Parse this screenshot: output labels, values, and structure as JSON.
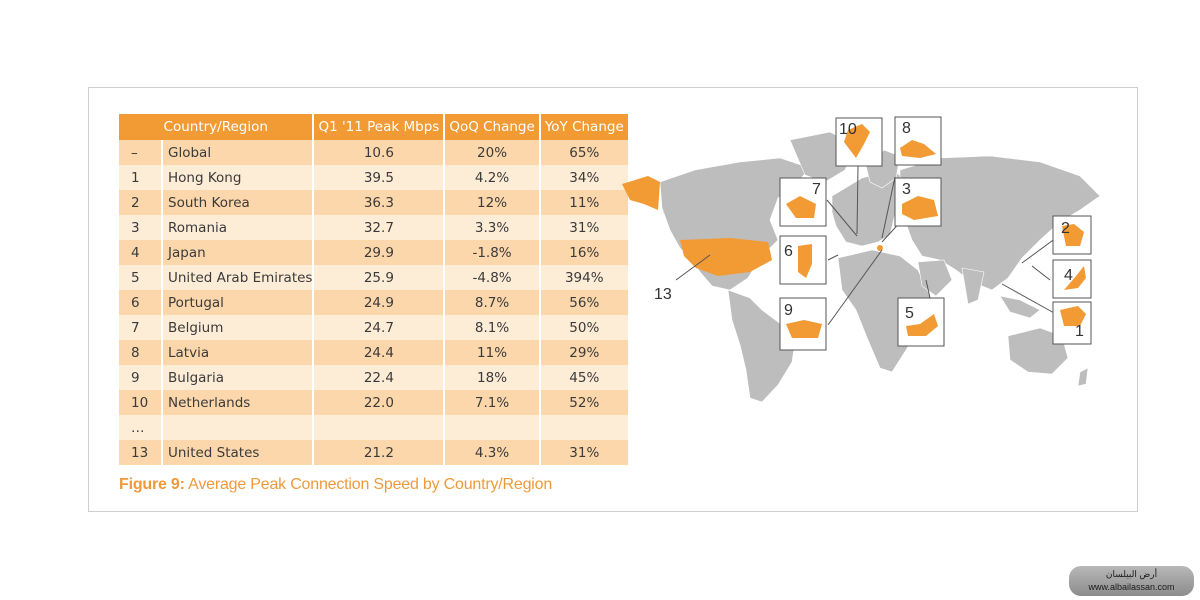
{
  "table": {
    "headers": [
      "Country/Region",
      "Q1 '11 Peak Mbps",
      "QoQ Change",
      "YoY Change"
    ],
    "rows": [
      {
        "rank": "–",
        "name": "Global",
        "peak": "10.6",
        "qoq": "20%",
        "yoy": "65%"
      },
      {
        "rank": "1",
        "name": "Hong Kong",
        "peak": "39.5",
        "qoq": "4.2%",
        "yoy": "34%"
      },
      {
        "rank": "2",
        "name": "South Korea",
        "peak": "36.3",
        "qoq": "12%",
        "yoy": "11%"
      },
      {
        "rank": "3",
        "name": "Romania",
        "peak": "32.7",
        "qoq": "3.3%",
        "yoy": "31%"
      },
      {
        "rank": "4",
        "name": "Japan",
        "peak": "29.9",
        "qoq": "-1.8%",
        "yoy": "16%"
      },
      {
        "rank": "5",
        "name": "United Arab Emirates",
        "peak": "25.9",
        "qoq": "-4.8%",
        "yoy": "394%"
      },
      {
        "rank": "6",
        "name": "Portugal",
        "peak": "24.9",
        "qoq": "8.7%",
        "yoy": "56%"
      },
      {
        "rank": "7",
        "name": "Belgium",
        "peak": "24.7",
        "qoq": "8.1%",
        "yoy": "50%"
      },
      {
        "rank": "8",
        "name": "Latvia",
        "peak": "24.4",
        "qoq": "11%",
        "yoy": "29%"
      },
      {
        "rank": "9",
        "name": "Bulgaria",
        "peak": "22.4",
        "qoq": "18%",
        "yoy": "45%"
      },
      {
        "rank": "10",
        "name": "Netherlands",
        "peak": "22.0",
        "qoq": "7.1%",
        "yoy": "52%"
      },
      {
        "rank": "…",
        "name": "",
        "peak": "",
        "qoq": "",
        "yoy": ""
      },
      {
        "rank": "13",
        "name": "United States",
        "peak": "21.2",
        "qoq": "4.3%",
        "yoy": "31%"
      }
    ]
  },
  "caption": {
    "label": "Figure 9:",
    "text": "Average Peak Connection Speed by Country/Region"
  },
  "map": {
    "callouts": [
      "10",
      "8",
      "7",
      "3",
      "2",
      "6",
      "4",
      "13",
      "9",
      "5",
      "1"
    ]
  },
  "watermark": {
    "line1": "أرض البيلسان",
    "line2": "www.albailassan.com"
  },
  "colors": {
    "accent": "#f29a33",
    "row_odd": "#fbd7ab",
    "row_even": "#fdecd6",
    "land": "#bdbdbd",
    "highlight": "#f29a33"
  }
}
